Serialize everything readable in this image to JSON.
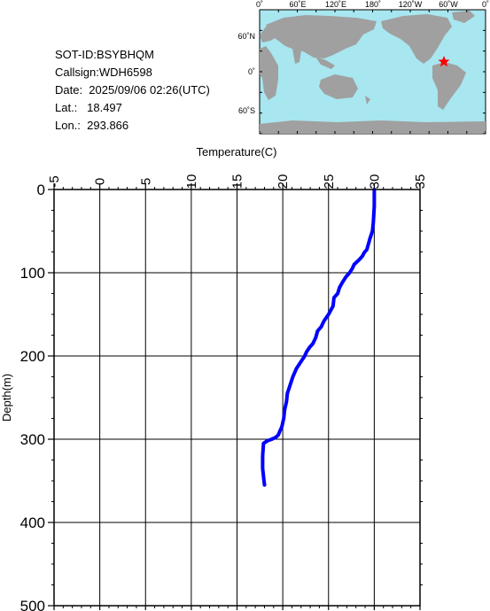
{
  "header": {
    "sot_id": "SOT-ID:BSYBHQM",
    "callsign": "Callsign:WDH6598",
    "date": "Date:  2025/09/06 02:26(UTC)",
    "lat": "Lat.:   18.497",
    "lon": "Lon.:  293.866"
  },
  "map": {
    "top_labels": [
      "0˚",
      "60˚E",
      "120˚E",
      "180˚",
      "120˚W",
      "60˚W",
      "0˚"
    ],
    "left_labels": [
      "60˚N",
      "0˚",
      "60˚S"
    ],
    "ocean_color": "#a8e6f0",
    "land_color": "#a0a0a0",
    "marker_color": "#ff0000"
  },
  "chart_data": {
    "type": "line",
    "title": "",
    "xlabel": "Temperature(C)",
    "ylabel": "Depth(m)",
    "xlim": [
      -5,
      35
    ],
    "ylim": [
      500,
      0
    ],
    "x_ticks": [
      "-5",
      "0",
      "5",
      "10",
      "15",
      "20",
      "25",
      "30",
      "35"
    ],
    "y_ticks": [
      "0",
      "100",
      "200",
      "300",
      "400",
      "500"
    ],
    "grid": true,
    "line_color": "#0000ff",
    "series": [
      {
        "x": [
          30.0,
          30.0,
          29.9,
          29.8,
          29.5,
          29.4,
          29.3,
          29.2,
          28.9,
          28.7,
          28.3,
          27.8,
          27.6,
          27.3,
          26.9,
          26.5,
          26.2,
          26.0,
          25.6,
          25.5,
          25.0,
          24.5,
          24.2,
          23.8,
          23.6,
          23.3,
          22.9,
          22.6,
          22.4,
          22.1,
          21.5,
          21.1,
          20.8,
          20.5,
          20.4,
          20.2,
          20.1,
          19.9,
          19.7,
          19.5,
          19.2,
          18.8,
          18.3,
          17.9,
          17.8,
          17.8,
          17.9,
          18.0
        ],
        "y": [
          0,
          20,
          40,
          50,
          60,
          64,
          68,
          72,
          76,
          80,
          85,
          90,
          95,
          100,
          105,
          112,
          118,
          125,
          130,
          140,
          150,
          158,
          165,
          170,
          178,
          185,
          190,
          195,
          200,
          205,
          215,
          225,
          235,
          245,
          255,
          265,
          275,
          285,
          290,
          295,
          298,
          300,
          302,
          305,
          320,
          335,
          345,
          355
        ]
      }
    ]
  }
}
